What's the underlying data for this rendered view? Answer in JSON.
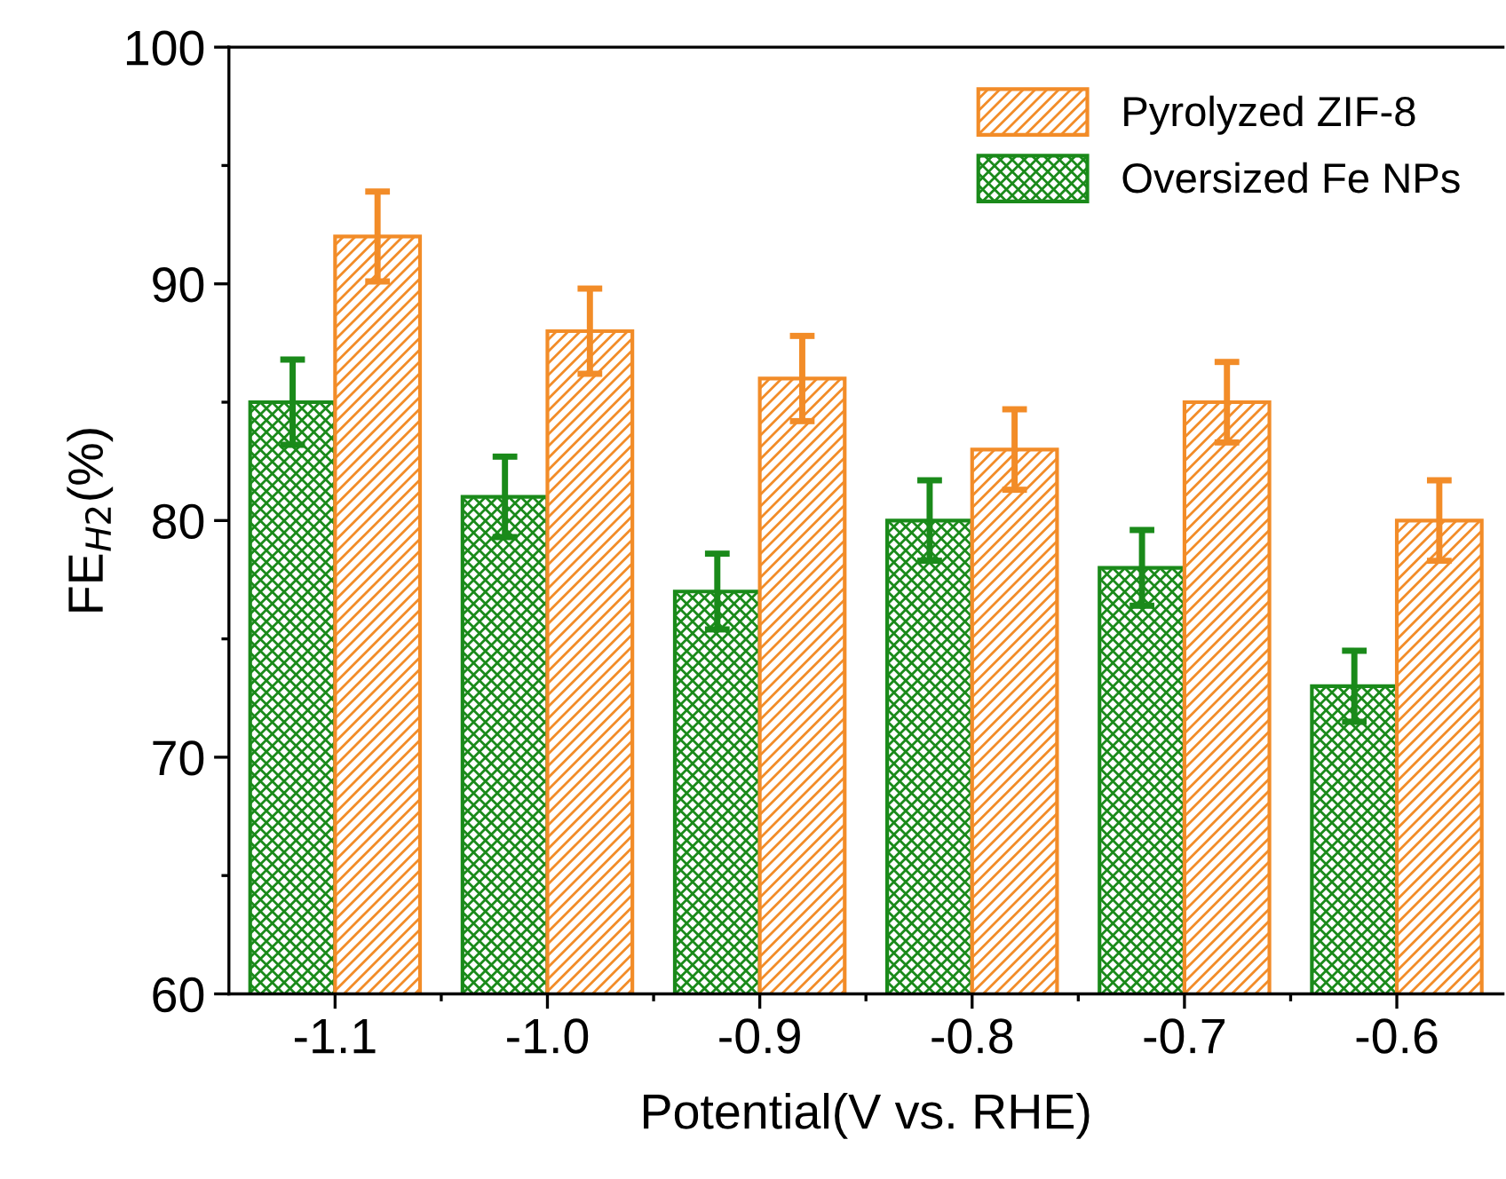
{
  "chart_data": {
    "type": "bar",
    "xlabel": "Potential(V vs. RHE)",
    "ylabel": "FE$_{H2}$(%)",
    "categories": [
      "-1.1",
      "-1.0",
      "-0.9",
      "-0.8",
      "-0.7",
      "-0.6"
    ],
    "series": [
      {
        "name": "Oversized Fe NPs",
        "color": "#1a8a1a",
        "values": [
          85,
          81,
          77,
          80,
          78,
          73
        ],
        "errors": [
          1.8,
          1.7,
          1.6,
          1.7,
          1.6,
          1.5
        ]
      },
      {
        "name": "Pyrolyzed ZIF-8",
        "color": "#f28c28",
        "values": [
          92,
          88,
          86,
          83,
          85,
          80
        ],
        "errors": [
          1.9,
          1.8,
          1.8,
          1.7,
          1.7,
          1.7
        ]
      }
    ],
    "ylim": [
      60,
      100
    ],
    "yticks": [
      60,
      {
        "value": 65,
        "label": null
      },
      70,
      {
        "value": 75,
        "label": null
      },
      80,
      {
        "value": 85,
        "label": null
      },
      90,
      {
        "value": 95,
        "label": null
      },
      100
    ],
    "legend": "top right",
    "grid": false
  }
}
